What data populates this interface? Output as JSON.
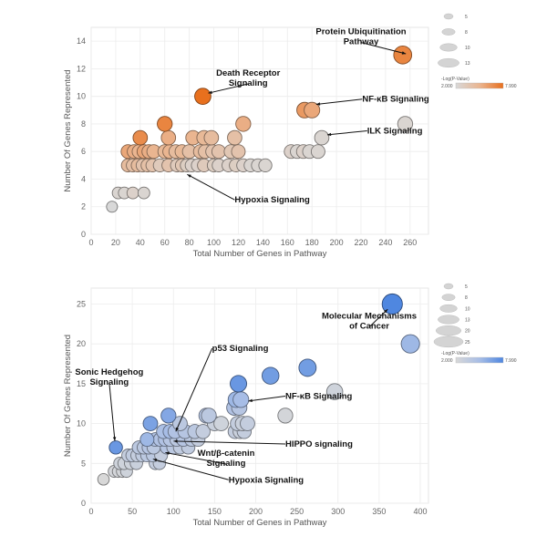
{
  "chart_data": [
    {
      "type": "scatter",
      "title": "",
      "xlabel": "Total Number of Genes in Pathway",
      "ylabel": "Number Of Genes Represented",
      "xlim": [
        0,
        275
      ],
      "ylim": [
        0,
        15
      ],
      "xticks": [
        0,
        20,
        40,
        60,
        80,
        100,
        120,
        140,
        160,
        180,
        200,
        220,
        240,
        260
      ],
      "yticks": [
        0,
        2,
        4,
        6,
        8,
        10,
        12,
        14
      ],
      "grid": true,
      "color_low": "#d8d8d8",
      "color_high": "#e8701e",
      "color_mid": "#eab590",
      "legend": {
        "size_title": "",
        "sizes": [
          "5",
          "8",
          "10",
          "13"
        ],
        "color_title": "-Log(P-Value)",
        "color_min": "2.000",
        "color_max": "7.990"
      },
      "points": [
        {
          "x": 17,
          "y": 2,
          "c": 0.0
        },
        {
          "x": 22,
          "y": 3,
          "c": 0.05
        },
        {
          "x": 27,
          "y": 3,
          "c": 0.05
        },
        {
          "x": 34,
          "y": 3,
          "c": 0.1
        },
        {
          "x": 43,
          "y": 3,
          "c": 0.05
        },
        {
          "x": 30,
          "y": 5,
          "c": 0.4
        },
        {
          "x": 34,
          "y": 5,
          "c": 0.35
        },
        {
          "x": 38,
          "y": 5,
          "c": 0.4
        },
        {
          "x": 42,
          "y": 5,
          "c": 0.3
        },
        {
          "x": 46,
          "y": 5,
          "c": 0.35
        },
        {
          "x": 50,
          "y": 5,
          "c": 0.3
        },
        {
          "x": 56,
          "y": 5,
          "c": 0.2
        },
        {
          "x": 63,
          "y": 5,
          "c": 0.3
        },
        {
          "x": 70,
          "y": 5,
          "c": 0.2
        },
        {
          "x": 74,
          "y": 5,
          "c": 0.25
        },
        {
          "x": 78,
          "y": 5,
          "c": 0.15
        },
        {
          "x": 82,
          "y": 5,
          "c": 0.1
        },
        {
          "x": 87,
          "y": 5,
          "c": 0.1
        },
        {
          "x": 92,
          "y": 5,
          "c": 0.2
        },
        {
          "x": 100,
          "y": 5,
          "c": 0.15
        },
        {
          "x": 104,
          "y": 5,
          "c": 0.1
        },
        {
          "x": 112,
          "y": 5,
          "c": 0.1
        },
        {
          "x": 118,
          "y": 5,
          "c": 0.15
        },
        {
          "x": 124,
          "y": 5,
          "c": 0.1
        },
        {
          "x": 130,
          "y": 5,
          "c": 0.05
        },
        {
          "x": 136,
          "y": 5,
          "c": 0.05
        },
        {
          "x": 142,
          "y": 5,
          "c": 0.05
        },
        {
          "x": 30,
          "y": 6,
          "c": 0.6
        },
        {
          "x": 35,
          "y": 6,
          "c": 0.55
        },
        {
          "x": 39,
          "y": 6,
          "c": 0.5
        },
        {
          "x": 43,
          "y": 6,
          "c": 0.6
        },
        {
          "x": 47,
          "y": 6,
          "c": 0.55
        },
        {
          "x": 51,
          "y": 6,
          "c": 0.5
        },
        {
          "x": 60,
          "y": 6,
          "c": 0.45
        },
        {
          "x": 64,
          "y": 6,
          "c": 0.5
        },
        {
          "x": 69,
          "y": 6,
          "c": 0.4
        },
        {
          "x": 74,
          "y": 6,
          "c": 0.45
        },
        {
          "x": 80,
          "y": 6,
          "c": 0.35
        },
        {
          "x": 89,
          "y": 6,
          "c": 0.4
        },
        {
          "x": 93,
          "y": 6,
          "c": 0.35
        },
        {
          "x": 99,
          "y": 6,
          "c": 0.3
        },
        {
          "x": 104,
          "y": 6,
          "c": 0.3
        },
        {
          "x": 114,
          "y": 6,
          "c": 0.25
        },
        {
          "x": 120,
          "y": 6,
          "c": 0.3
        },
        {
          "x": 163,
          "y": 6,
          "c": 0.1
        },
        {
          "x": 168,
          "y": 6,
          "c": 0.05
        },
        {
          "x": 173,
          "y": 6,
          "c": 0.1
        },
        {
          "x": 178,
          "y": 6,
          "c": 0.05
        },
        {
          "x": 185,
          "y": 6,
          "c": 0.05
        },
        {
          "x": 40,
          "y": 7,
          "c": 0.8
        },
        {
          "x": 63,
          "y": 7,
          "c": 0.55
        },
        {
          "x": 83,
          "y": 7,
          "c": 0.5
        },
        {
          "x": 92,
          "y": 7,
          "c": 0.45
        },
        {
          "x": 98,
          "y": 7,
          "c": 0.4
        },
        {
          "x": 117,
          "y": 7,
          "c": 0.35
        },
        {
          "x": 188,
          "y": 7,
          "c": 0.05
        },
        {
          "x": 60,
          "y": 8,
          "c": 0.85
        },
        {
          "x": 124,
          "y": 8,
          "c": 0.55
        },
        {
          "x": 256,
          "y": 8,
          "c": 0.05
        },
        {
          "x": 174,
          "y": 9,
          "c": 0.7
        },
        {
          "x": 180,
          "y": 9,
          "c": 0.6
        },
        {
          "x": 91,
          "y": 10,
          "c": 1.0
        },
        {
          "x": 254,
          "y": 13,
          "c": 0.85
        }
      ],
      "annotations": [
        {
          "lines": [
            "Protein Ubiquitination",
            "Pathway"
          ],
          "x": 258,
          "y": 13.05,
          "tx": 220,
          "ty": 14.3
        },
        {
          "lines": [
            "Death Receptor",
            "Signaling"
          ],
          "x": 94,
          "y": 10.2,
          "tx": 128,
          "ty": 11.3
        },
        {
          "lines": [
            "NF-κB Signaling"
          ],
          "x": 182,
          "y": 9.4,
          "tx": 221,
          "ty": 9.6
        },
        {
          "lines": [
            "ILK Signaling"
          ],
          "x": 191,
          "y": 7.2,
          "tx": 225,
          "ty": 7.3
        },
        {
          "lines": [
            "Hypoxia Signaling"
          ],
          "x": 77,
          "y": 4.4,
          "tx": 117,
          "ty": 2.3
        }
      ]
    },
    {
      "type": "scatter",
      "title": "",
      "xlabel": "Total Number of Genes in Pathway",
      "ylabel": "Number Of Genes Represented",
      "xlim": [
        0,
        410
      ],
      "ylim": [
        0,
        27
      ],
      "xticks": [
        0,
        50,
        100,
        150,
        200,
        250,
        300,
        350,
        400
      ],
      "yticks": [
        0,
        5,
        10,
        15,
        20,
        25
      ],
      "grid": true,
      "color_low": "#d8d8d8",
      "color_high": "#4f87e0",
      "color_mid": "#a7bde6",
      "legend": {
        "size_title": "",
        "sizes": [
          "5",
          "8",
          "10",
          "13",
          "20",
          "25"
        ],
        "color_title": "-Log(P-Value)",
        "color_min": "2.000",
        "color_max": "7.990"
      },
      "points": [
        {
          "x": 15,
          "y": 3,
          "c": 0.0
        },
        {
          "x": 28,
          "y": 4,
          "c": 0.05
        },
        {
          "x": 33,
          "y": 4,
          "c": 0.05
        },
        {
          "x": 38,
          "y": 4,
          "c": 0.05
        },
        {
          "x": 43,
          "y": 4,
          "c": 0.1
        },
        {
          "x": 35,
          "y": 5,
          "c": 0.1
        },
        {
          "x": 40,
          "y": 5,
          "c": 0.1
        },
        {
          "x": 48,
          "y": 5,
          "c": 0.1
        },
        {
          "x": 55,
          "y": 5,
          "c": 0.15
        },
        {
          "x": 78,
          "y": 5,
          "c": 0.2
        },
        {
          "x": 83,
          "y": 5,
          "c": 0.2
        },
        {
          "x": 45,
          "y": 6,
          "c": 0.2
        },
        {
          "x": 50,
          "y": 6,
          "c": 0.25
        },
        {
          "x": 56,
          "y": 6,
          "c": 0.2
        },
        {
          "x": 62,
          "y": 6,
          "c": 0.25
        },
        {
          "x": 68,
          "y": 6,
          "c": 0.3
        },
        {
          "x": 75,
          "y": 6,
          "c": 0.3
        },
        {
          "x": 85,
          "y": 6,
          "c": 0.2
        },
        {
          "x": 30,
          "y": 7,
          "c": 0.85
        },
        {
          "x": 58,
          "y": 7,
          "c": 0.3
        },
        {
          "x": 64,
          "y": 7,
          "c": 0.3
        },
        {
          "x": 70,
          "y": 7,
          "c": 0.35
        },
        {
          "x": 76,
          "y": 7,
          "c": 0.3
        },
        {
          "x": 92,
          "y": 7,
          "c": 0.35
        },
        {
          "x": 100,
          "y": 7,
          "c": 0.3
        },
        {
          "x": 108,
          "y": 7,
          "c": 0.25
        },
        {
          "x": 118,
          "y": 7,
          "c": 0.25
        },
        {
          "x": 78,
          "y": 8,
          "c": 0.4
        },
        {
          "x": 84,
          "y": 8,
          "c": 0.4
        },
        {
          "x": 90,
          "y": 8,
          "c": 0.4
        },
        {
          "x": 96,
          "y": 8,
          "c": 0.35
        },
        {
          "x": 104,
          "y": 8,
          "c": 0.3
        },
        {
          "x": 112,
          "y": 8,
          "c": 0.35
        },
        {
          "x": 122,
          "y": 8,
          "c": 0.3
        },
        {
          "x": 130,
          "y": 8,
          "c": 0.2
        },
        {
          "x": 68,
          "y": 8,
          "c": 0.55
        },
        {
          "x": 88,
          "y": 9,
          "c": 0.45
        },
        {
          "x": 96,
          "y": 9,
          "c": 0.5
        },
        {
          "x": 102,
          "y": 9,
          "c": 0.4
        },
        {
          "x": 114,
          "y": 9,
          "c": 0.35
        },
        {
          "x": 126,
          "y": 9,
          "c": 0.3
        },
        {
          "x": 136,
          "y": 9,
          "c": 0.2
        },
        {
          "x": 72,
          "y": 10,
          "c": 0.75
        },
        {
          "x": 108,
          "y": 10,
          "c": 0.3
        },
        {
          "x": 150,
          "y": 10,
          "c": 0.15
        },
        {
          "x": 158,
          "y": 10,
          "c": 0.1
        },
        {
          "x": 94,
          "y": 11,
          "c": 0.7
        },
        {
          "x": 140,
          "y": 11,
          "c": 0.35
        },
        {
          "x": 143,
          "y": 11,
          "c": 0.3
        },
        {
          "x": 236,
          "y": 11,
          "c": 0.05
        },
        {
          "x": 175,
          "y": 9,
          "c": 0.2
        },
        {
          "x": 181,
          "y": 9,
          "c": 0.15
        },
        {
          "x": 186,
          "y": 9,
          "c": 0.2
        },
        {
          "x": 178,
          "y": 10,
          "c": 0.2
        },
        {
          "x": 184,
          "y": 10,
          "c": 0.15
        },
        {
          "x": 190,
          "y": 10,
          "c": 0.2
        },
        {
          "x": 174,
          "y": 12,
          "c": 0.4
        },
        {
          "x": 180,
          "y": 12,
          "c": 0.35
        },
        {
          "x": 176,
          "y": 13,
          "c": 0.55
        },
        {
          "x": 182,
          "y": 13,
          "c": 0.5
        },
        {
          "x": 296,
          "y": 14,
          "c": 0.1
        },
        {
          "x": 179,
          "y": 15,
          "c": 0.85
        },
        {
          "x": 218,
          "y": 16,
          "c": 0.8
        },
        {
          "x": 263,
          "y": 17,
          "c": 0.8
        },
        {
          "x": 388,
          "y": 20,
          "c": 0.55
        },
        {
          "x": 366,
          "y": 25,
          "c": 1.0
        }
      ],
      "annotations": [
        {
          "lines": [
            "Molecular Mechanisms",
            "of Cancer"
          ],
          "x": 362,
          "y": 24.5,
          "tx": 338,
          "ty": 22.8
        },
        {
          "lines": [
            "p53 Signaling"
          ],
          "x": 102,
          "y": 8.8,
          "tx": 147,
          "ty": 19.1
        },
        {
          "lines": [
            "Sonic Hedgehog",
            "Signaling"
          ],
          "x": 29,
          "y": 7.6,
          "tx": 22,
          "ty": 15.8
        },
        {
          "lines": [
            "NF-κB Signaling"
          ],
          "x": 189,
          "y": 12.8,
          "tx": 236,
          "ty": 13.1
        },
        {
          "lines": [
            "HIPPO signaling"
          ],
          "x": 98,
          "y": 7.8,
          "tx": 236,
          "ty": 7.1
        },
        {
          "lines": [
            "Wnt/β-catenin",
            "Signaling"
          ],
          "x": 88,
          "y": 6.4,
          "tx": 164,
          "ty": 5.6
        },
        {
          "lines": [
            "Hypoxia Signaling"
          ],
          "x": 73,
          "y": 5.6,
          "tx": 167,
          "ty": 2.6
        }
      ]
    }
  ]
}
